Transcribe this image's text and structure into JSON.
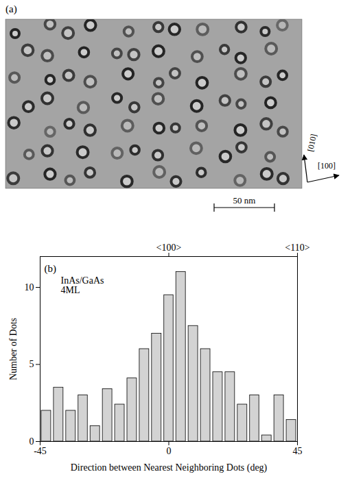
{
  "image_panel": {
    "label": "(a)",
    "scale_bar": "50 nm",
    "directions": [
      "[010]",
      "[100]"
    ]
  },
  "chart_data": {
    "type": "bar",
    "panel_label": "(b)",
    "annotations": [
      "InAs/GaAs",
      "4ML"
    ],
    "x_label": "Direction between Nearest Neighboring Dots (deg)",
    "y_label": "Number of Dots",
    "bins": [
      -45,
      -40.7,
      -36.4,
      -32.1,
      -27.9,
      -23.6,
      -19.3,
      -15,
      -10.7,
      -6.4,
      -2.1,
      2.1,
      6.4,
      10.7,
      15,
      19.3,
      23.6,
      27.9,
      32.1,
      36.4,
      40.7,
      45
    ],
    "values": [
      2,
      3.5,
      2,
      3,
      1,
      3.4,
      2.4,
      4.1,
      6,
      7,
      9.5,
      11,
      7.5,
      6,
      4.5,
      4.5,
      2.4,
      3,
      0.4,
      3,
      1.4
    ],
    "color": "#d3d3d3",
    "xlim": [
      -45,
      45
    ],
    "xticks": [
      -45,
      0,
      45
    ],
    "x2ticks": [
      {
        "value": 0,
        "label": "<100>"
      },
      {
        "value": 45,
        "label": "<110>"
      }
    ],
    "ylim": [
      0,
      12
    ],
    "yticks": [
      0,
      5,
      10
    ],
    "grid": false
  }
}
